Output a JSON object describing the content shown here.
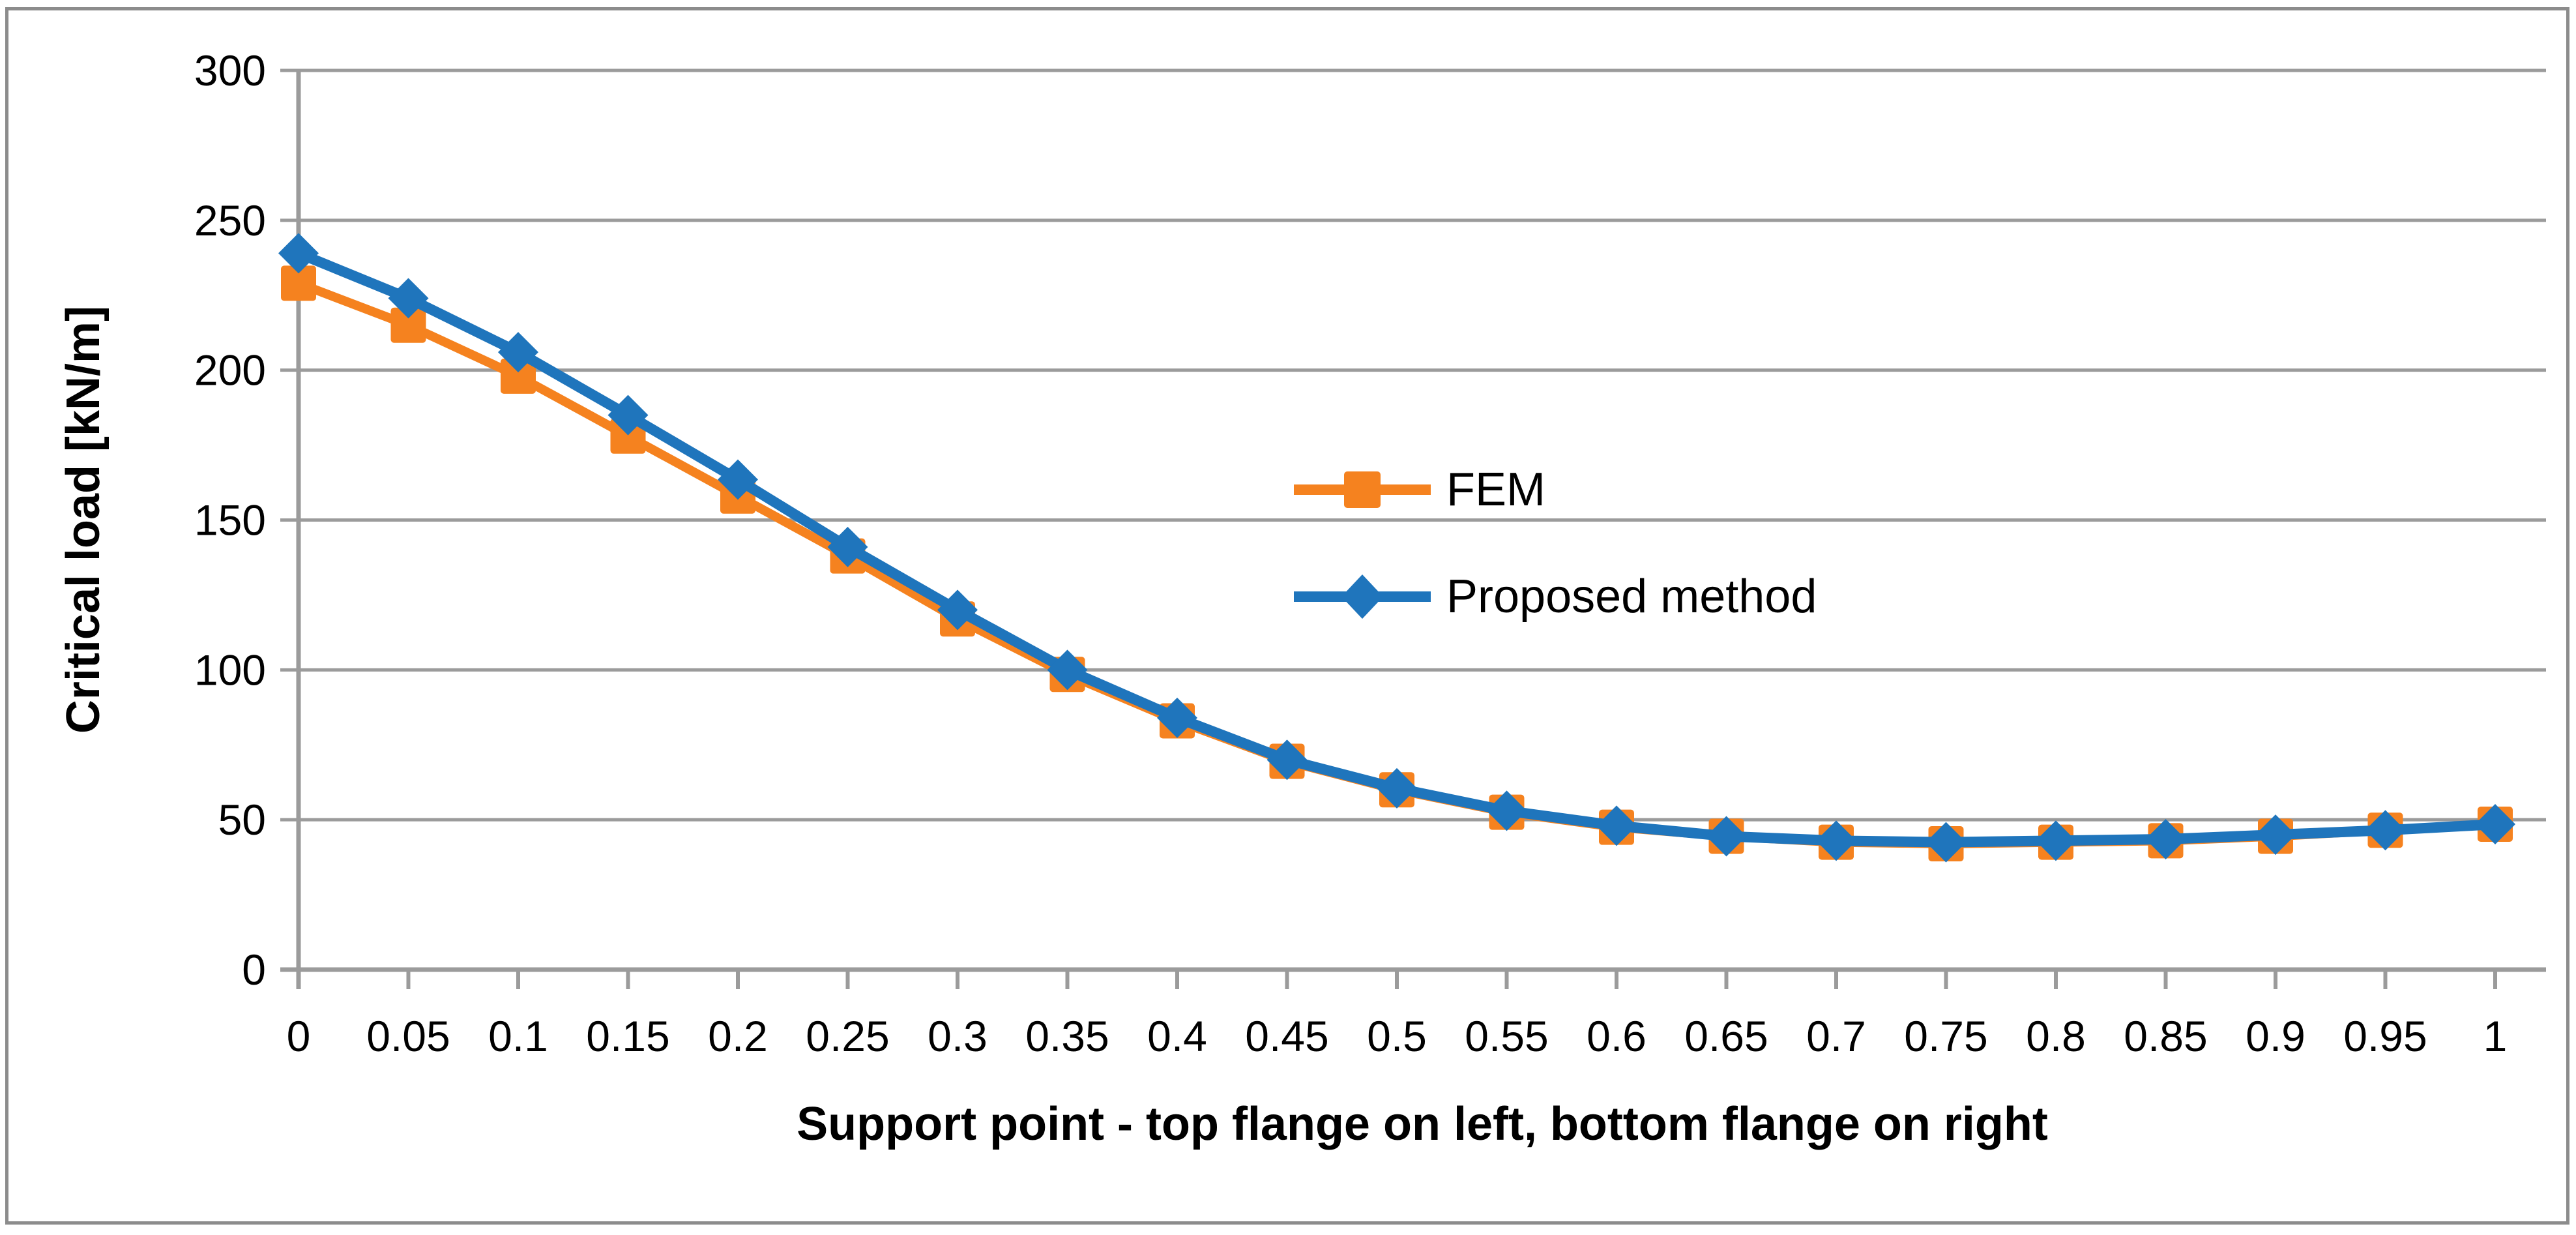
{
  "chart_data": {
    "type": "line",
    "title": "",
    "xlabel": "Support point - top flange on left, bottom flange on right",
    "ylabel": "Critical load [kN/m]",
    "x": [
      0,
      0.05,
      0.1,
      0.15,
      0.2,
      0.25,
      0.3,
      0.35,
      0.4,
      0.45,
      0.5,
      0.55,
      0.6,
      0.65,
      0.7,
      0.75,
      0.8,
      0.85,
      0.9,
      0.95,
      1
    ],
    "x_tick_labels": [
      "0",
      "0.05",
      "0.1",
      "0.15",
      "0.2",
      "0.25",
      "0.3",
      "0.35",
      "0.4",
      "0.45",
      "0.5",
      "0.55",
      "0.6",
      "0.65",
      "0.7",
      "0.75",
      "0.8",
      "0.85",
      "0.9",
      "0.95",
      "1"
    ],
    "y_ticks": [
      0,
      50,
      100,
      150,
      200,
      250,
      300
    ],
    "y_tick_labels": [
      "0",
      "50",
      "100",
      "150",
      "200",
      "250",
      "300"
    ],
    "xlim": [
      0,
      1
    ],
    "ylim": [
      0,
      300
    ],
    "grid": true,
    "legend_position": "inside-center",
    "series": [
      {
        "name": "FEM",
        "marker": "square",
        "color": "#F5821F",
        "values": [
          229,
          215,
          198,
          178,
          158,
          138,
          117,
          98.5,
          83,
          69.5,
          60,
          52.5,
          47.5,
          44.5,
          42.5,
          42,
          42.5,
          43,
          44.5,
          46.5,
          48.5
        ]
      },
      {
        "name": "Proposed method",
        "marker": "diamond",
        "color": "#1F75BC",
        "values": [
          239,
          224,
          206,
          185,
          163.5,
          141,
          120,
          100,
          84,
          70,
          60.5,
          53,
          48,
          44.5,
          43,
          42.5,
          43,
          43.5,
          45,
          46.5,
          48.5
        ]
      }
    ]
  },
  "style_colors": {
    "gridline": "#9B9B9B",
    "axis": "#9B9B9B",
    "frame_border": "#8C8C8C",
    "background": "#FFFFFF",
    "text": "#000000"
  }
}
